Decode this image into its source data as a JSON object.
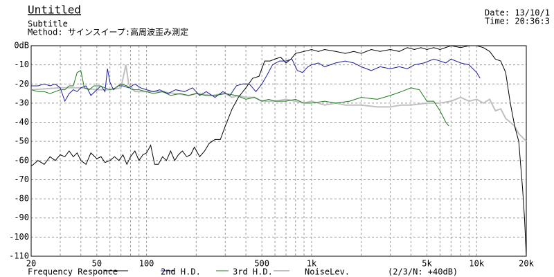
{
  "chart_data": {
    "type": "line",
    "title": "Untitled",
    "subtitle": "Subtitle",
    "method": "Method: サインスイープ:高周波歪み測定",
    "date": "Date: 13/10/1",
    "time": "Time: 20:36:3",
    "annotation": "(2/3/N: +40dB)",
    "log_x": true,
    "grid": true,
    "xlim": [
      20,
      20000
    ],
    "ylim": [
      -110,
      0
    ],
    "xticks": [
      20,
      50,
      100,
      500,
      {
        "value": 1000,
        "label": "1k"
      },
      {
        "value": 5000,
        "label": "5k"
      },
      {
        "value": 10000,
        "label": "10k"
      },
      {
        "value": 20000,
        "label": "20k"
      }
    ],
    "xminor_ticks": [
      30,
      40,
      60,
      70,
      80,
      90,
      200,
      300,
      400,
      600,
      700,
      800,
      900,
      2000,
      3000,
      4000,
      6000,
      7000,
      8000,
      9000
    ],
    "yticks": [
      {
        "value": 0,
        "label": "0dB"
      },
      -10,
      -20,
      -30,
      -40,
      -50,
      -60,
      -70,
      -80,
      -90,
      -100,
      -110
    ],
    "series": [
      {
        "name": "Frequency Responce",
        "color": "#000000",
        "width": 1,
        "x": [
          20,
          22,
          24,
          26,
          28,
          30,
          32,
          34,
          36,
          38,
          40,
          43,
          46,
          50,
          53,
          56,
          60,
          64,
          68,
          72,
          76,
          80,
          85,
          90,
          95,
          100,
          106,
          112,
          118,
          125,
          132,
          140,
          148,
          156,
          165,
          175,
          185,
          195,
          210,
          225,
          240,
          260,
          280,
          300,
          330,
          360,
          400,
          440,
          480,
          520,
          560,
          600,
          650,
          700,
          750,
          800,
          900,
          1000,
          1100,
          1200,
          1400,
          1600,
          1800,
          2000,
          2300,
          2600,
          3000,
          3400,
          3800,
          4200,
          4600,
          5000,
          5500,
          6000,
          7000,
          8000,
          9000,
          10000,
          11000,
          12000,
          13000,
          14000,
          15000,
          16000,
          17000,
          18000,
          19000,
          19500,
          20000
        ],
        "values": [
          -63,
          -60,
          -62,
          -58,
          -60,
          -57,
          -58,
          -55,
          -58,
          -56,
          -60,
          -62,
          -56,
          -59,
          -58,
          -61,
          -60,
          -58,
          -60,
          -57,
          -62,
          -58,
          -55,
          -60,
          -57,
          -56,
          -52,
          -62,
          -62,
          -58,
          -60,
          -55,
          -60,
          -57,
          -55,
          -58,
          -57,
          -53,
          -58,
          -55,
          -51,
          -49,
          -49,
          -42,
          -33,
          -27,
          -22,
          -17,
          -16,
          -8,
          -8,
          -7,
          -6,
          -9,
          -7,
          -4,
          -3,
          -2,
          -3,
          -2,
          -3,
          -4,
          -3,
          -4,
          -2,
          -3,
          -2,
          -3,
          -1,
          -2,
          -1,
          -2,
          -1,
          -2,
          0,
          -1,
          0,
          0,
          -1,
          -3,
          -7,
          -8,
          -14,
          -30,
          -42,
          -50,
          -75,
          -90,
          -110
        ]
      },
      {
        "name": "2nd H.D.",
        "color": "#1c1ca0",
        "width": 1,
        "x": [
          20,
          22,
          24,
          26,
          28,
          30,
          32,
          34,
          36,
          38,
          40,
          43,
          46,
          50,
          53,
          56,
          58,
          60,
          63,
          67,
          72,
          78,
          85,
          92,
          100,
          110,
          120,
          135,
          150,
          170,
          190,
          210,
          230,
          260,
          290,
          320,
          350,
          380,
          420,
          460,
          500,
          540,
          580,
          640,
          700,
          760,
          820,
          880,
          950,
          1000,
          1100,
          1200,
          1400,
          1600,
          1800,
          2000,
          2300,
          2600,
          3000,
          3400,
          3800,
          4200,
          4800,
          5500,
          6000,
          6500,
          7000,
          8000,
          9000,
          10000,
          10500
        ],
        "values": [
          -21,
          -21,
          -20,
          -21,
          -20,
          -22,
          -29,
          -25,
          -23,
          -24,
          -22,
          -21,
          -26,
          -23,
          -21,
          -24,
          -12,
          -19,
          -23,
          -21,
          -21,
          -22,
          -20,
          -22,
          -23,
          -24,
          -23,
          -25,
          -23,
          -24,
          -22,
          -26,
          -24,
          -27,
          -24,
          -26,
          -21,
          -20,
          -20,
          -24,
          -20,
          -15,
          -10,
          -8,
          -8,
          -7,
          -13,
          -14,
          -11,
          -10,
          -9,
          -11,
          -9,
          -8,
          -9,
          -11,
          -13,
          -11,
          -12,
          -11,
          -12,
          -10,
          -9,
          -7,
          -8,
          -9,
          -7,
          -9,
          -10,
          -14,
          -17
        ]
      },
      {
        "name": "3rd H.D.",
        "color": "#1a7a1a",
        "width": 1,
        "x": [
          20,
          22,
          24,
          26,
          28,
          30,
          32,
          34,
          36,
          38,
          40,
          42,
          45,
          48,
          52,
          56,
          60,
          65,
          70,
          76,
          82,
          90,
          100,
          110,
          125,
          140,
          160,
          180,
          200,
          230,
          260,
          300,
          350,
          400,
          450,
          500,
          550,
          600,
          700,
          800,
          900,
          1000,
          1200,
          1400,
          1700,
          2000,
          2500,
          3000,
          3500,
          4000,
          4500,
          5000,
          5500,
          6000,
          6500,
          6800
        ],
        "values": [
          -23,
          -24,
          -24,
          -25,
          -24,
          -23,
          -23,
          -21,
          -21,
          -14,
          -13,
          -22,
          -23,
          -21,
          -21,
          -22,
          -23,
          -22,
          -20,
          -21,
          -23,
          -23,
          -24,
          -25,
          -24,
          -26,
          -25,
          -26,
          -25,
          -26,
          -26,
          -25,
          -26,
          -28,
          -27,
          -29,
          -28,
          -29,
          -29,
          -28,
          -30,
          -30,
          -29,
          -30,
          -29,
          -27,
          -28,
          -26,
          -24,
          -22,
          -23,
          -29,
          -29,
          -34,
          -40,
          -42
        ]
      },
      {
        "name": "NoiseLev.",
        "color": "#c0c0c0",
        "width": 2,
        "x": [
          20,
          30,
          40,
          50,
          60,
          70,
          75,
          78,
          85,
          100,
          120,
          150,
          180,
          200,
          250,
          300,
          330,
          360,
          400,
          450,
          500,
          600,
          700,
          800,
          900,
          1000,
          1200,
          1400,
          1600,
          2000,
          2500,
          3000,
          3500,
          4000,
          5000,
          6000,
          7000,
          8000,
          9000,
          10000,
          11000,
          12000,
          13000,
          14000,
          15000,
          16000,
          17000,
          18000,
          19000,
          20000
        ],
        "values": [
          -23,
          -22,
          -22,
          -23,
          -23,
          -22,
          -10,
          -20,
          -24,
          -24,
          -24,
          -25,
          -26,
          -25,
          -26,
          -25,
          -27,
          -26,
          -27,
          -27,
          -29,
          -29,
          -28,
          -29,
          -30,
          -29,
          -31,
          -30,
          -31,
          -31,
          -32,
          -32,
          -31,
          -31,
          -30,
          -30,
          -29,
          -27,
          -29,
          -28,
          -30,
          -28,
          -34,
          -33,
          -38,
          -40,
          -42,
          -46,
          -48,
          -50
        ]
      }
    ]
  }
}
